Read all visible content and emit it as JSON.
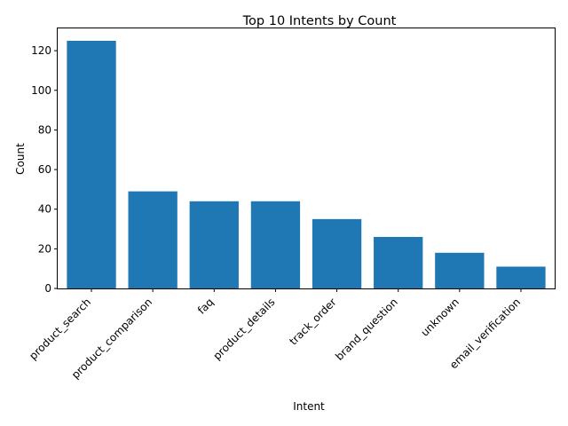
{
  "chart_data": {
    "type": "bar",
    "title": "Top 10 Intents by Count",
    "xlabel": "Intent",
    "ylabel": "Count",
    "categories": [
      "product_search",
      "product_comparison",
      "faq",
      "product_details",
      "track_order",
      "brand_question",
      "unknown",
      "email_verification"
    ],
    "values": [
      125,
      49,
      44,
      44,
      35,
      26,
      18,
      11
    ],
    "ylim": [
      0,
      131.25
    ],
    "yticks": [
      0,
      20,
      40,
      60,
      80,
      100,
      120
    ],
    "grid": false,
    "legend": "none",
    "bar_color": "#1f77b4"
  }
}
